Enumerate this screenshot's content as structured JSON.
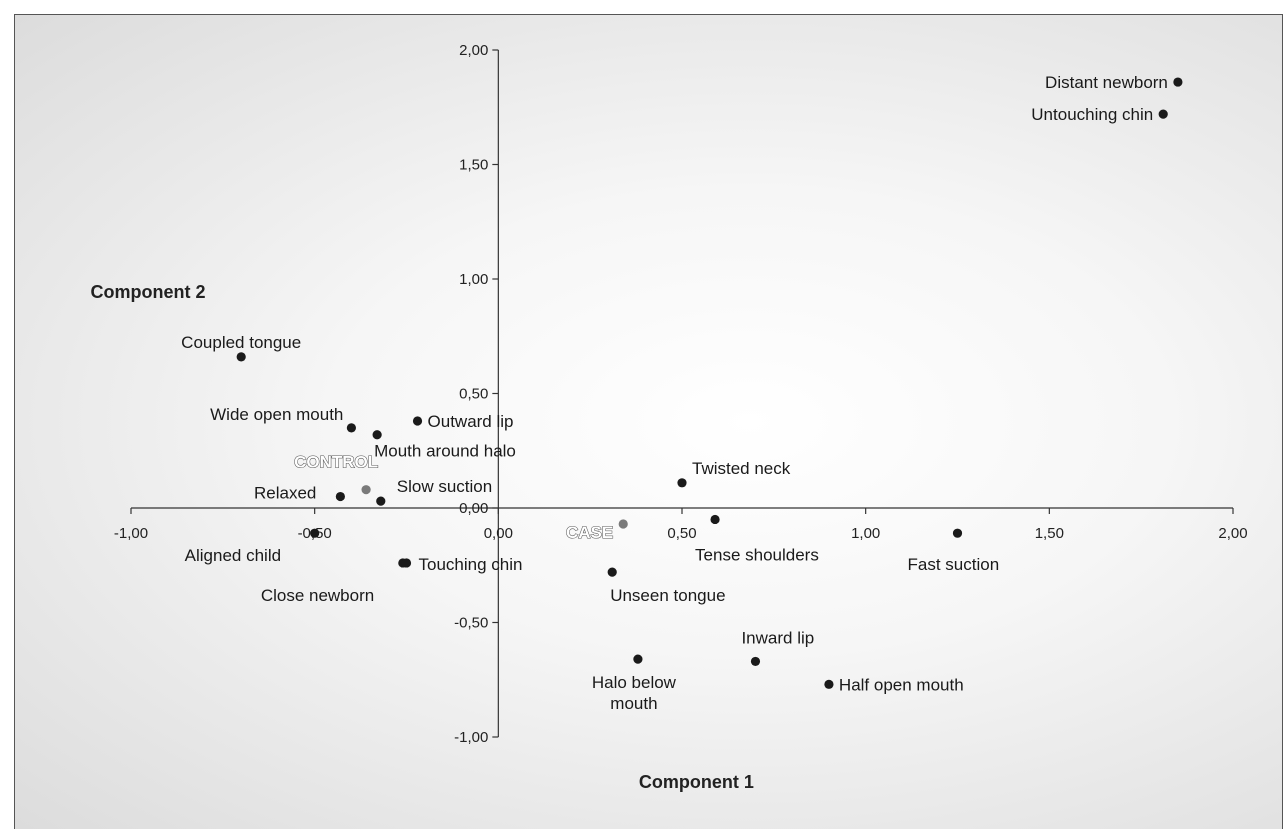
{
  "chart_data": {
    "type": "scatter",
    "xlabel": "Component 1",
    "ylabel": "Component 2",
    "xlim": [
      -1.0,
      2.0
    ],
    "ylim": [
      -1.0,
      2.0
    ],
    "xticks": [
      "-1,00",
      "-0,50",
      "0,00",
      "0,50",
      "1,00",
      "1,50",
      "2,00"
    ],
    "yticks": [
      "-1,00",
      "-0,50",
      "0,00",
      "0,50",
      "1,00",
      "1,50",
      "2,00"
    ],
    "grid": false,
    "colors": {
      "point": "#1a1a1a",
      "group": "#7a7a7a"
    },
    "points": [
      {
        "label": "Distant newborn",
        "x": 1.85,
        "y": 1.86
      },
      {
        "label": "Untouching chin",
        "x": 1.81,
        "y": 1.72
      },
      {
        "label": "Coupled tongue",
        "x": -0.7,
        "y": 0.66
      },
      {
        "label": "Wide open mouth",
        "x": -0.4,
        "y": 0.35
      },
      {
        "label": "Mouth around halo",
        "x": -0.33,
        "y": 0.32
      },
      {
        "label": "Outward lip",
        "x": -0.22,
        "y": 0.38
      },
      {
        "label": "Relaxed",
        "x": -0.43,
        "y": 0.05
      },
      {
        "label": "Slow suction",
        "x": -0.32,
        "y": 0.03
      },
      {
        "label": "Aligned child",
        "x": -0.5,
        "y": -0.11
      },
      {
        "label": "Close newborn",
        "x": -0.26,
        "y": -0.24
      },
      {
        "label": "Touching chin",
        "x": -0.25,
        "y": -0.24
      },
      {
        "label": "Twisted neck",
        "x": 0.5,
        "y": 0.11
      },
      {
        "label": "Tense shoulders",
        "x": 0.59,
        "y": -0.05
      },
      {
        "label": "Fast suction",
        "x": 1.25,
        "y": -0.11
      },
      {
        "label": "Unseen tongue",
        "x": 0.31,
        "y": -0.28
      },
      {
        "label": "Inward lip",
        "x": 0.7,
        "y": -0.67
      },
      {
        "label": "Half open mouth",
        "x": 0.9,
        "y": -0.77
      },
      {
        "label": "Halo below mouth",
        "label_lines": [
          "Halo below",
          "mouth"
        ],
        "x": 0.38,
        "y": -0.66
      }
    ],
    "groups": [
      {
        "label": "CONTROL",
        "x": -0.36,
        "y": 0.08
      },
      {
        "label": "CASE",
        "x": 0.34,
        "y": -0.07
      }
    ]
  }
}
